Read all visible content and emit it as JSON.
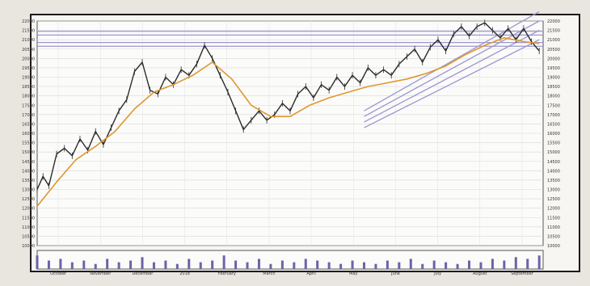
{
  "chart_data": {
    "type": "line",
    "title": "",
    "xlabel": "",
    "ylabel": "",
    "ylim": [
      10000,
      22000
    ],
    "yticks": [
      10000,
      10500,
      11000,
      11500,
      12000,
      12500,
      13000,
      13500,
      14000,
      14500,
      15000,
      15500,
      16000,
      16500,
      17000,
      17500,
      18000,
      18500,
      19000,
      19500,
      20000,
      20500,
      21000,
      21500,
      22000
    ],
    "x_labels": [
      "October",
      "November",
      "December",
      "2018",
      "February",
      "March",
      "April",
      "May",
      "June",
      "July",
      "August",
      "September"
    ],
    "grid": true,
    "legend": "none",
    "series": [
      {
        "kind": "price",
        "color": "#2b2b2b",
        "x": [
          0,
          3,
          6,
          10,
          14,
          18,
          22,
          26,
          30,
          34,
          38,
          42,
          46,
          50,
          54,
          58,
          62,
          66,
          70,
          74,
          78,
          82,
          86,
          90,
          94,
          98,
          102,
          106,
          110,
          114,
          118,
          122,
          126,
          130,
          134,
          138,
          142,
          146,
          150,
          154,
          158,
          162,
          166,
          170,
          174,
          178,
          182,
          186,
          190,
          194,
          198,
          202,
          206,
          210,
          214,
          218,
          222,
          226,
          230,
          234,
          238,
          242,
          246,
          250,
          254,
          258
        ],
        "values": [
          13000,
          13700,
          13200,
          14900,
          15200,
          14800,
          15700,
          15100,
          16100,
          15400,
          16300,
          17200,
          17800,
          19300,
          19800,
          18300,
          18100,
          19000,
          18600,
          19400,
          19100,
          19700,
          20700,
          20000,
          19100,
          18200,
          17200,
          16200,
          16700,
          17200,
          16700,
          17000,
          17600,
          17200,
          18100,
          18500,
          17900,
          18600,
          18300,
          19000,
          18500,
          19100,
          18700,
          19500,
          19100,
          19400,
          19100,
          19700,
          20100,
          20500,
          19800,
          20600,
          21000,
          20400,
          21300,
          21700,
          21200,
          21700,
          21900,
          21500,
          21100,
          21600,
          21000,
          21600,
          20900,
          20400
        ]
      },
      {
        "kind": "moving-average",
        "color": "#e0972c",
        "x": [
          0,
          10,
          20,
          30,
          40,
          50,
          60,
          70,
          80,
          90,
          100,
          110,
          120,
          130,
          140,
          150,
          160,
          170,
          180,
          190,
          200,
          210,
          220,
          230,
          240,
          250,
          258
        ],
        "values": [
          12100,
          13400,
          14600,
          15300,
          16100,
          17300,
          18200,
          18600,
          19100,
          19800,
          18900,
          17500,
          16900,
          16900,
          17500,
          17900,
          18200,
          18500,
          18700,
          18900,
          19200,
          19600,
          20200,
          20700,
          21100,
          20900,
          20800
        ]
      }
    ],
    "volume": {
      "color": "#6e62a8",
      "x": [
        0,
        6,
        12,
        18,
        24,
        30,
        36,
        42,
        48,
        54,
        60,
        66,
        72,
        78,
        84,
        90,
        96,
        102,
        108,
        114,
        120,
        126,
        132,
        138,
        144,
        150,
        156,
        162,
        168,
        174,
        180,
        186,
        192,
        198,
        204,
        210,
        216,
        222,
        228,
        234,
        240,
        246,
        252,
        258
      ],
      "values": [
        0.8,
        0.5,
        0.6,
        0.4,
        0.5,
        0.3,
        0.6,
        0.4,
        0.5,
        0.7,
        0.4,
        0.5,
        0.3,
        0.6,
        0.4,
        0.5,
        0.8,
        0.5,
        0.4,
        0.6,
        0.3,
        0.5,
        0.4,
        0.6,
        0.5,
        0.4,
        0.3,
        0.5,
        0.4,
        0.3,
        0.5,
        0.4,
        0.6,
        0.3,
        0.5,
        0.4,
        0.3,
        0.5,
        0.4,
        0.6,
        0.5,
        0.7,
        0.6,
        0.8
      ]
    },
    "channel": {
      "color": "#9c96cf",
      "lines": [
        {
          "x": [
            168,
            258
          ],
          "values": [
            17200,
            22500
          ]
        },
        {
          "x": [
            168,
            258
          ],
          "values": [
            16900,
            22000
          ]
        },
        {
          "x": [
            168,
            258
          ],
          "values": [
            16600,
            21500
          ]
        },
        {
          "x": [
            168,
            258
          ],
          "values": [
            16300,
            21000
          ]
        }
      ]
    },
    "horizontal_levels": {
      "color": "#9c96cf",
      "values": [
        21450,
        21250,
        20850,
        20650
      ]
    }
  }
}
